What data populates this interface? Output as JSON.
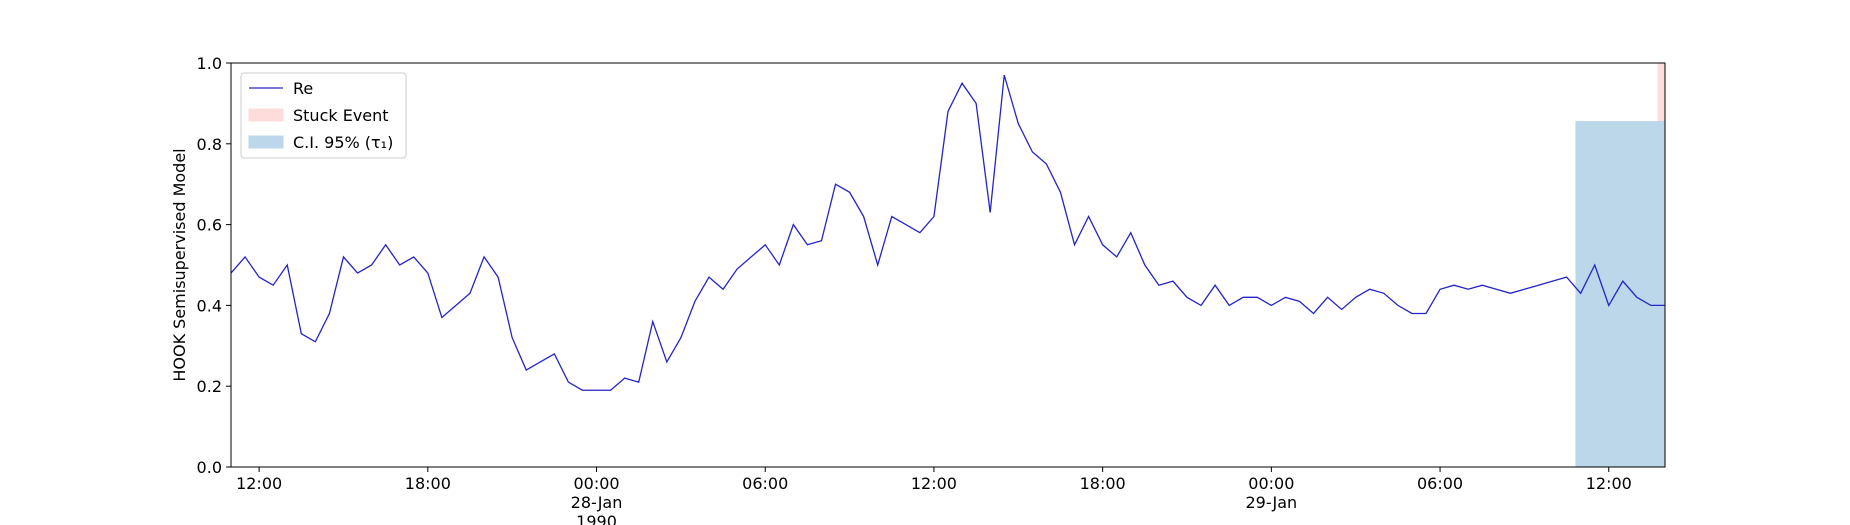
{
  "chart_data": {
    "type": "line",
    "ylabel": "HOOK Semisupervised Model",
    "xlim": [
      "1990-01-27T11:00",
      "1990-01-29T14:00"
    ],
    "xticks": [
      {
        "value": "1990-01-27T12:00",
        "label": "12:00"
      },
      {
        "value": "1990-01-27T18:00",
        "label": "18:00"
      },
      {
        "value": "1990-01-28T00:00",
        "label": "00:00\n28-Jan\n1990"
      },
      {
        "value": "1990-01-28T06:00",
        "label": "06:00"
      },
      {
        "value": "1990-01-28T12:00",
        "label": "12:00"
      },
      {
        "value": "1990-01-28T18:00",
        "label": "18:00"
      },
      {
        "value": "1990-01-29T00:00",
        "label": "00:00\n29-Jan"
      },
      {
        "value": "1990-01-29T06:00",
        "label": "06:00"
      },
      {
        "value": "1990-01-29T12:00",
        "label": "12:00"
      }
    ],
    "ylim": [
      0,
      1
    ],
    "yticks": [
      {
        "value": 0,
        "label": "0.0"
      },
      0.2,
      0.4,
      0.6,
      0.8,
      {
        "value": 1,
        "label": "1.0"
      }
    ],
    "legend": "upper left",
    "x": [
      "1990-01-27T11:00",
      "1990-01-27T11:30",
      "1990-01-27T12:00",
      "1990-01-27T12:30",
      "1990-01-27T13:00",
      "1990-01-27T13:30",
      "1990-01-27T14:00",
      "1990-01-27T14:30",
      "1990-01-27T15:00",
      "1990-01-27T15:30",
      "1990-01-27T16:00",
      "1990-01-27T16:30",
      "1990-01-27T17:00",
      "1990-01-27T17:30",
      "1990-01-27T18:00",
      "1990-01-27T18:30",
      "1990-01-27T19:00",
      "1990-01-27T19:30",
      "1990-01-27T20:00",
      "1990-01-27T20:30",
      "1990-01-27T21:00",
      "1990-01-27T21:30",
      "1990-01-27T22:00",
      "1990-01-27T22:30",
      "1990-01-27T23:00",
      "1990-01-27T23:30",
      "1990-01-28T00:00",
      "1990-01-28T00:30",
      "1990-01-28T01:00",
      "1990-01-28T01:30",
      "1990-01-28T02:00",
      "1990-01-28T02:30",
      "1990-01-28T03:00",
      "1990-01-28T03:30",
      "1990-01-28T04:00",
      "1990-01-28T04:30",
      "1990-01-28T05:00",
      "1990-01-28T05:30",
      "1990-01-28T06:00",
      "1990-01-28T06:30",
      "1990-01-28T07:00",
      "1990-01-28T07:30",
      "1990-01-28T08:00",
      "1990-01-28T08:30",
      "1990-01-28T09:00",
      "1990-01-28T09:30",
      "1990-01-28T10:00",
      "1990-01-28T10:30",
      "1990-01-28T11:00",
      "1990-01-28T11:30",
      "1990-01-28T12:00",
      "1990-01-28T12:30",
      "1990-01-28T13:00",
      "1990-01-28T13:30",
      "1990-01-28T14:00",
      "1990-01-28T14:30",
      "1990-01-28T15:00",
      "1990-01-28T15:30",
      "1990-01-28T16:00",
      "1990-01-28T16:30",
      "1990-01-28T17:00",
      "1990-01-28T17:30",
      "1990-01-28T18:00",
      "1990-01-28T18:30",
      "1990-01-28T19:00",
      "1990-01-28T19:30",
      "1990-01-28T20:00",
      "1990-01-28T20:30",
      "1990-01-28T21:00",
      "1990-01-28T21:30",
      "1990-01-28T22:00",
      "1990-01-28T22:30",
      "1990-01-28T23:00",
      "1990-01-28T23:30",
      "1990-01-29T00:00",
      "1990-01-29T00:30",
      "1990-01-29T01:00",
      "1990-01-29T01:30",
      "1990-01-29T02:00",
      "1990-01-29T02:30",
      "1990-01-29T03:00",
      "1990-01-29T03:30",
      "1990-01-29T04:00",
      "1990-01-29T04:30",
      "1990-01-29T05:00",
      "1990-01-29T05:30",
      "1990-01-29T06:00",
      "1990-01-29T06:30",
      "1990-01-29T07:00",
      "1990-01-29T07:30",
      "1990-01-29T08:00",
      "1990-01-29T08:30",
      "1990-01-29T09:00",
      "1990-01-29T09:30",
      "1990-01-29T10:00",
      "1990-01-29T10:30",
      "1990-01-29T11:00",
      "1990-01-29T11:30",
      "1990-01-29T12:00",
      "1990-01-29T12:30",
      "1990-01-29T13:00",
      "1990-01-29T13:30",
      "1990-01-29T14:00"
    ],
    "series": [
      {
        "name": "Re",
        "color": "#2424c8",
        "values": [
          0.48,
          0.52,
          0.47,
          0.45,
          0.5,
          0.33,
          0.31,
          0.38,
          0.52,
          0.48,
          0.5,
          0.55,
          0.5,
          0.52,
          0.48,
          0.37,
          0.4,
          0.43,
          0.52,
          0.47,
          0.32,
          0.24,
          0.26,
          0.28,
          0.21,
          0.19,
          0.19,
          0.19,
          0.22,
          0.21,
          0.36,
          0.26,
          0.32,
          0.41,
          0.47,
          0.44,
          0.49,
          0.52,
          0.55,
          0.5,
          0.6,
          0.55,
          0.56,
          0.7,
          0.68,
          0.62,
          0.5,
          0.62,
          0.6,
          0.58,
          0.62,
          0.88,
          0.95,
          0.9,
          0.63,
          0.97,
          0.85,
          0.78,
          0.75,
          0.68,
          0.55,
          0.62,
          0.55,
          0.52,
          0.58,
          0.5,
          0.45,
          0.46,
          0.42,
          0.4,
          0.45,
          0.4,
          0.42,
          0.42,
          0.4,
          0.42,
          0.41,
          0.38,
          0.42,
          0.39,
          0.42,
          0.44,
          0.43,
          0.4,
          0.38,
          0.38,
          0.44,
          0.45,
          0.44,
          0.45,
          0.44,
          0.43,
          0.44,
          0.45,
          0.46,
          0.47,
          0.43,
          0.5,
          0.4,
          0.46,
          0.42,
          0.4,
          0.4
        ]
      }
    ],
    "spans": [
      {
        "name": "Stuck Event",
        "color": "#ffdcdc",
        "x": [
          "1990-01-29T13:45",
          "1990-01-29T14:00"
        ],
        "y": [
          0,
          1
        ]
      },
      {
        "name": "C.I. 95% (τ₁)",
        "color": "#bcd6ea",
        "x": [
          "1990-01-29T10:50",
          "1990-01-29T14:00"
        ],
        "y": [
          0,
          0.855
        ]
      }
    ]
  }
}
